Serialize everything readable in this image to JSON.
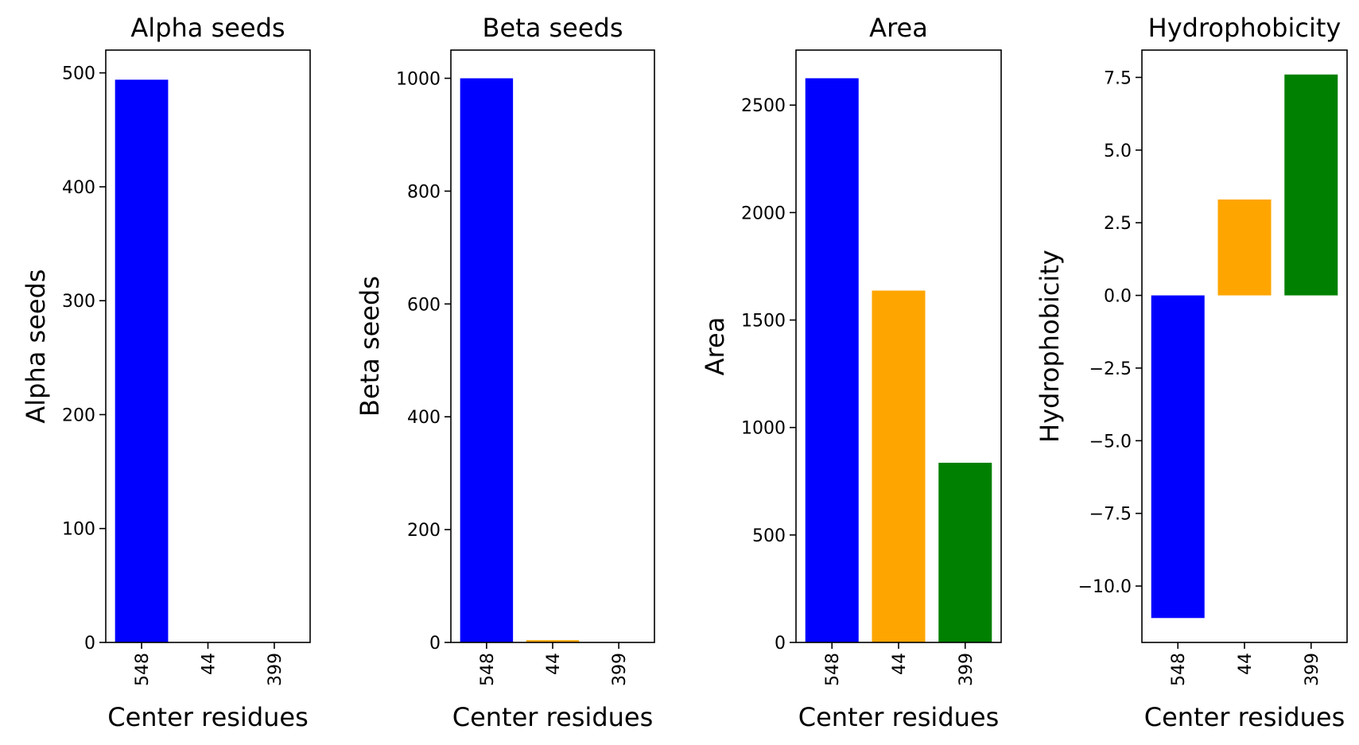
{
  "chart_data": [
    {
      "type": "bar",
      "title": "Alpha seeds",
      "xlabel": "Center residues",
      "ylabel": "Alpha seeds",
      "categories": [
        "548",
        "44",
        "399"
      ],
      "values": [
        494,
        0,
        0
      ],
      "colors": [
        "#0000ff",
        "#ffa500",
        "#008000"
      ],
      "ylim": [
        0,
        520
      ],
      "yticks": [
        0,
        100,
        200,
        300,
        400,
        500
      ],
      "ytick_labels": [
        "0",
        "100",
        "200",
        "300",
        "400",
        "500"
      ],
      "grid": false
    },
    {
      "type": "bar",
      "title": "Beta seeds",
      "xlabel": "Center residues",
      "ylabel": "Beta seeds",
      "categories": [
        "548",
        "44",
        "399"
      ],
      "values": [
        1000,
        4,
        0
      ],
      "colors": [
        "#0000ff",
        "#ffa500",
        "#008000"
      ],
      "ylim": [
        0,
        1050
      ],
      "yticks": [
        0,
        200,
        400,
        600,
        800,
        1000
      ],
      "ytick_labels": [
        "0",
        "200",
        "400",
        "600",
        "800",
        "1000"
      ],
      "grid": false
    },
    {
      "type": "bar",
      "title": "Area",
      "xlabel": "Center residues",
      "ylabel": "Area",
      "categories": [
        "548",
        "44",
        "399"
      ],
      "values": [
        2625,
        1637,
        836
      ],
      "colors": [
        "#0000ff",
        "#ffa500",
        "#008000"
      ],
      "ylim": [
        0,
        2756
      ],
      "yticks": [
        0,
        500,
        1000,
        1500,
        2000,
        2500
      ],
      "ytick_labels": [
        "0",
        "500",
        "1000",
        "1500",
        "2000",
        "2500"
      ],
      "grid": false
    },
    {
      "type": "bar",
      "title": "Hydrophobicity",
      "xlabel": "Center residues",
      "ylabel": "Hydrophobicity",
      "categories": [
        "548",
        "44",
        "399"
      ],
      "values": [
        -11.1,
        3.3,
        7.6
      ],
      "colors": [
        "#0000ff",
        "#ffa500",
        "#008000"
      ],
      "ylim": [
        -11.94,
        8.44
      ],
      "yticks": [
        -10,
        -7.5,
        -5,
        -2.5,
        0,
        2.5,
        5,
        7.5
      ],
      "ytick_labels": [
        "−10.0",
        "−7.5",
        "−5.0",
        "−2.5",
        "0.0",
        "2.5",
        "5.0",
        "7.5"
      ],
      "grid": false
    }
  ]
}
